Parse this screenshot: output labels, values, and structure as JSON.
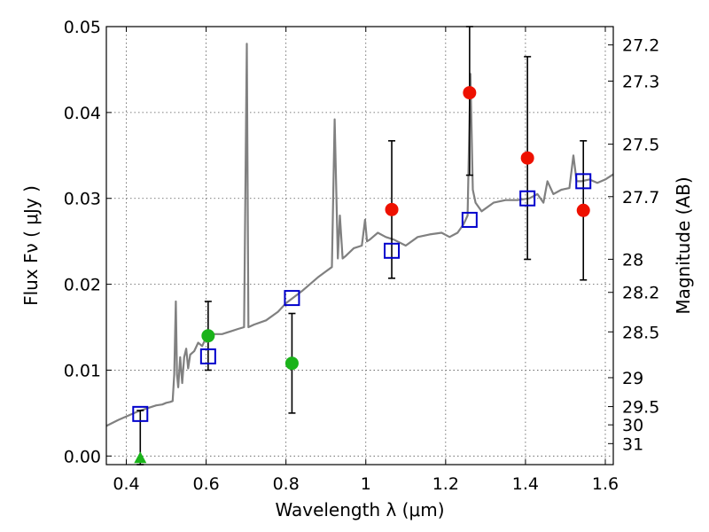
{
  "chart_data": {
    "type": "scatter",
    "xlabel": "Wavelength  λ (μm)",
    "ylabel": "Flux  Fν  ( μJy )",
    "y2label": "Magnitude (AB)",
    "xlim": [
      0.35,
      1.62
    ],
    "ylim": [
      -0.001,
      0.05
    ],
    "x_ticks": [
      0.4,
      0.6,
      0.8,
      1.0,
      1.2,
      1.4,
      1.6
    ],
    "x_tick_labels": [
      "0.4",
      "0.6",
      "0.8",
      "1",
      "1.2",
      "1.4",
      "1.6"
    ],
    "y_ticks": [
      0.0,
      0.01,
      0.02,
      0.03,
      0.04,
      0.05
    ],
    "y_tick_labels": [
      "0.00",
      "0.01",
      "0.02",
      "0.03",
      "0.04",
      "0.05"
    ],
    "magnitude_ticks": [
      27.2,
      27.3,
      27.5,
      27.7,
      28,
      28.2,
      28.5,
      29,
      29.5,
      30,
      31
    ],
    "magnitude_tick_labels": [
      "27.2",
      "27.3",
      "27.5",
      "27.7",
      "28",
      "28.2",
      "28.5",
      "29",
      "29.5",
      "30",
      "31"
    ],
    "grid": true,
    "colors": {
      "template": "#808080",
      "model": "#0000cc",
      "green": "#1ab31a",
      "red": "#ee1100",
      "errorbar": "#000000",
      "frame": "#000000",
      "grid": "#555555"
    },
    "series": [
      {
        "style": "line",
        "color": "#808080",
        "x": [
          0.35,
          0.38,
          0.41,
          0.43,
          0.455,
          0.475,
          0.49,
          0.5,
          0.51,
          0.516,
          0.52,
          0.524,
          0.527,
          0.53,
          0.535,
          0.54,
          0.545,
          0.55,
          0.555,
          0.56,
          0.57,
          0.58,
          0.59,
          0.6,
          0.62,
          0.64,
          0.66,
          0.68,
          0.695,
          0.702,
          0.706,
          0.72,
          0.75,
          0.78,
          0.8,
          0.82,
          0.84,
          0.86,
          0.88,
          0.9,
          0.915,
          0.922,
          0.93,
          0.935,
          0.942,
          0.95,
          0.97,
          0.99,
          0.998,
          1.003,
          1.01,
          1.03,
          1.05,
          1.07,
          1.1,
          1.13,
          1.16,
          1.19,
          1.21,
          1.23,
          1.245,
          1.255,
          1.262,
          1.268,
          1.275,
          1.29,
          1.32,
          1.35,
          1.38,
          1.41,
          1.43,
          1.445,
          1.455,
          1.47,
          1.49,
          1.51,
          1.52,
          1.528,
          1.54,
          1.56,
          1.58,
          1.6,
          1.62
        ],
        "y": [
          0.0035,
          0.0042,
          0.0048,
          0.0052,
          0.0056,
          0.0059,
          0.006,
          0.0062,
          0.0063,
          0.0064,
          0.0095,
          0.018,
          0.0095,
          0.008,
          0.0115,
          0.0085,
          0.0115,
          0.0125,
          0.0102,
          0.0118,
          0.0122,
          0.0132,
          0.0128,
          0.0138,
          0.0142,
          0.0142,
          0.0145,
          0.0148,
          0.015,
          0.048,
          0.015,
          0.0153,
          0.0158,
          0.0168,
          0.0178,
          0.0185,
          0.0192,
          0.02,
          0.0208,
          0.0215,
          0.022,
          0.0392,
          0.023,
          0.028,
          0.023,
          0.0233,
          0.0242,
          0.0245,
          0.0275,
          0.025,
          0.0252,
          0.026,
          0.0255,
          0.0252,
          0.0245,
          0.0255,
          0.0258,
          0.026,
          0.0255,
          0.026,
          0.027,
          0.028,
          0.0445,
          0.031,
          0.0295,
          0.0285,
          0.0295,
          0.0298,
          0.0298,
          0.03,
          0.0305,
          0.0295,
          0.032,
          0.0305,
          0.031,
          0.0312,
          0.035,
          0.032,
          0.032,
          0.0322,
          0.0318,
          0.0322,
          0.0328
        ]
      },
      {
        "style": "open-square",
        "color": "#0000cc",
        "x": [
          0.435,
          0.605,
          0.815,
          1.065,
          1.26,
          1.405,
          1.545
        ],
        "y": [
          0.0049,
          0.0116,
          0.0184,
          0.0239,
          0.0275,
          0.03,
          0.032
        ]
      },
      {
        "style": "filled-circle",
        "color": "#1ab31a",
        "x": [
          0.605,
          0.815
        ],
        "y": [
          0.014,
          0.0108
        ],
        "err": [
          0.004,
          0.0058
        ]
      },
      {
        "style": "filled-triangle",
        "color": "#1ab31a",
        "x": [
          0.435
        ],
        "y": [
          -0.0002
        ],
        "err": [
          0.0055
        ]
      },
      {
        "style": "filled-circle",
        "color": "#ee1100",
        "x": [
          1.065,
          1.26,
          1.405,
          1.545
        ],
        "y": [
          0.0287,
          0.0423,
          0.0347,
          0.0286
        ],
        "err": [
          0.008,
          0.0096,
          0.0118,
          0.0081
        ]
      }
    ]
  }
}
